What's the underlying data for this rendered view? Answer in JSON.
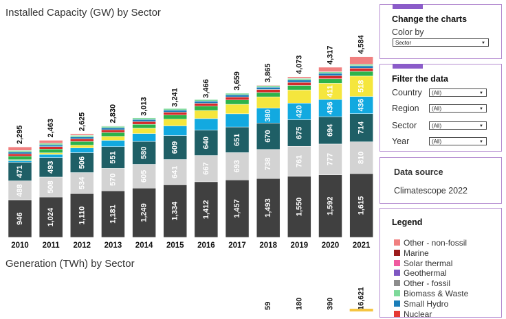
{
  "chart_title": "Installed Capacity (GW) by Sector",
  "generation_title": "Generation (TWh) by Sector",
  "controls": {
    "change_charts_title": "Change the charts",
    "color_by_label": "Color by",
    "color_by_value": "Sector"
  },
  "filters": {
    "title": "Filter the data",
    "items": [
      {
        "label": "Country",
        "value": "(All)"
      },
      {
        "label": "Region",
        "value": "(All)"
      },
      {
        "label": "Sector",
        "value": "(All)"
      },
      {
        "label": "Year",
        "value": "(All)"
      }
    ]
  },
  "source": {
    "title": "Data source",
    "value": "Climatescope 2022"
  },
  "legend": {
    "title": "Legend",
    "items": [
      {
        "label": "Other - non-fossil",
        "color": "#f08080"
      },
      {
        "label": "Marine",
        "color": "#9b1b1b"
      },
      {
        "label": "Solar thermal",
        "color": "#f05aa0"
      },
      {
        "label": "Geothermal",
        "color": "#7e57c2"
      },
      {
        "label": "Other - fossil",
        "color": "#8c8c8c"
      },
      {
        "label": "Biomass & Waste",
        "color": "#7ed99a"
      },
      {
        "label": "Small Hydro",
        "color": "#1a7db8"
      },
      {
        "label": "Nuclear",
        "color": "#e53935"
      }
    ]
  },
  "chart_data": {
    "type": "bar",
    "stacked": true,
    "title": "Installed Capacity (GW) by Sector",
    "categories": [
      "2010",
      "2011",
      "2012",
      "2013",
      "2014",
      "2015",
      "2016",
      "2017",
      "2018",
      "2019",
      "2020",
      "2021"
    ],
    "totals": [
      2295,
      2463,
      2625,
      2830,
      3013,
      3241,
      3466,
      3659,
      3865,
      4073,
      4317,
      4584
    ],
    "series": [
      {
        "values": [
          946,
          1024,
          1110,
          1181,
          1249,
          1334,
          1412,
          1457,
          1493,
          1550,
          1592,
          1615
        ],
        "color": "#404040"
      },
      {
        "values": [
          488,
          508,
          534,
          570,
          605,
          641,
          667,
          693,
          738,
          761,
          777,
          810
        ],
        "color": "#d3d3d3"
      },
      {
        "values": [
          471,
          493,
          506,
          551,
          580,
          609,
          640,
          651,
          670,
          675,
          694,
          714
        ],
        "color": "#1f5f66"
      },
      {
        "values": [
          45,
          80,
          120,
          160,
          200,
          245,
          295,
          335,
          380,
          420,
          436,
          436
        ],
        "color": "#12a9e0"
      },
      {
        "values": [
          20,
          40,
          70,
          100,
          135,
          170,
          205,
          240,
          285,
          335,
          411,
          518
        ],
        "color": "#f5e63d"
      },
      {
        "values": [
          90,
          95,
          95,
          100,
          100,
          105,
          110,
          110,
          110,
          115,
          115,
          120
        ],
        "color": "#2db34a"
      },
      {
        "values": [
          60,
          62,
          65,
          68,
          70,
          72,
          73,
          75,
          76,
          77,
          78,
          80
        ],
        "color": "#d42b2b"
      },
      {
        "values": [
          45,
          46,
          48,
          50,
          52,
          54,
          55,
          57,
          58,
          60,
          60,
          60
        ],
        "color": "#1a7db8"
      },
      {
        "values": [
          40,
          40,
          40,
          40,
          40,
          40,
          40,
          40,
          40,
          40,
          40,
          40
        ],
        "color": "#7ed99a"
      },
      {
        "values": [
          90,
          75,
          37,
          10,
          -18,
          -29,
          -31,
          1,
          15,
          40,
          114,
          191
        ],
        "color": "#f08080"
      }
    ],
    "labeled_series": [
      0,
      1,
      2,
      3,
      4
    ],
    "label_min": 350,
    "ylim": [
      0,
      4700
    ],
    "generation_partial_totals": [
      "59",
      "180",
      "390",
      "16,621"
    ]
  }
}
